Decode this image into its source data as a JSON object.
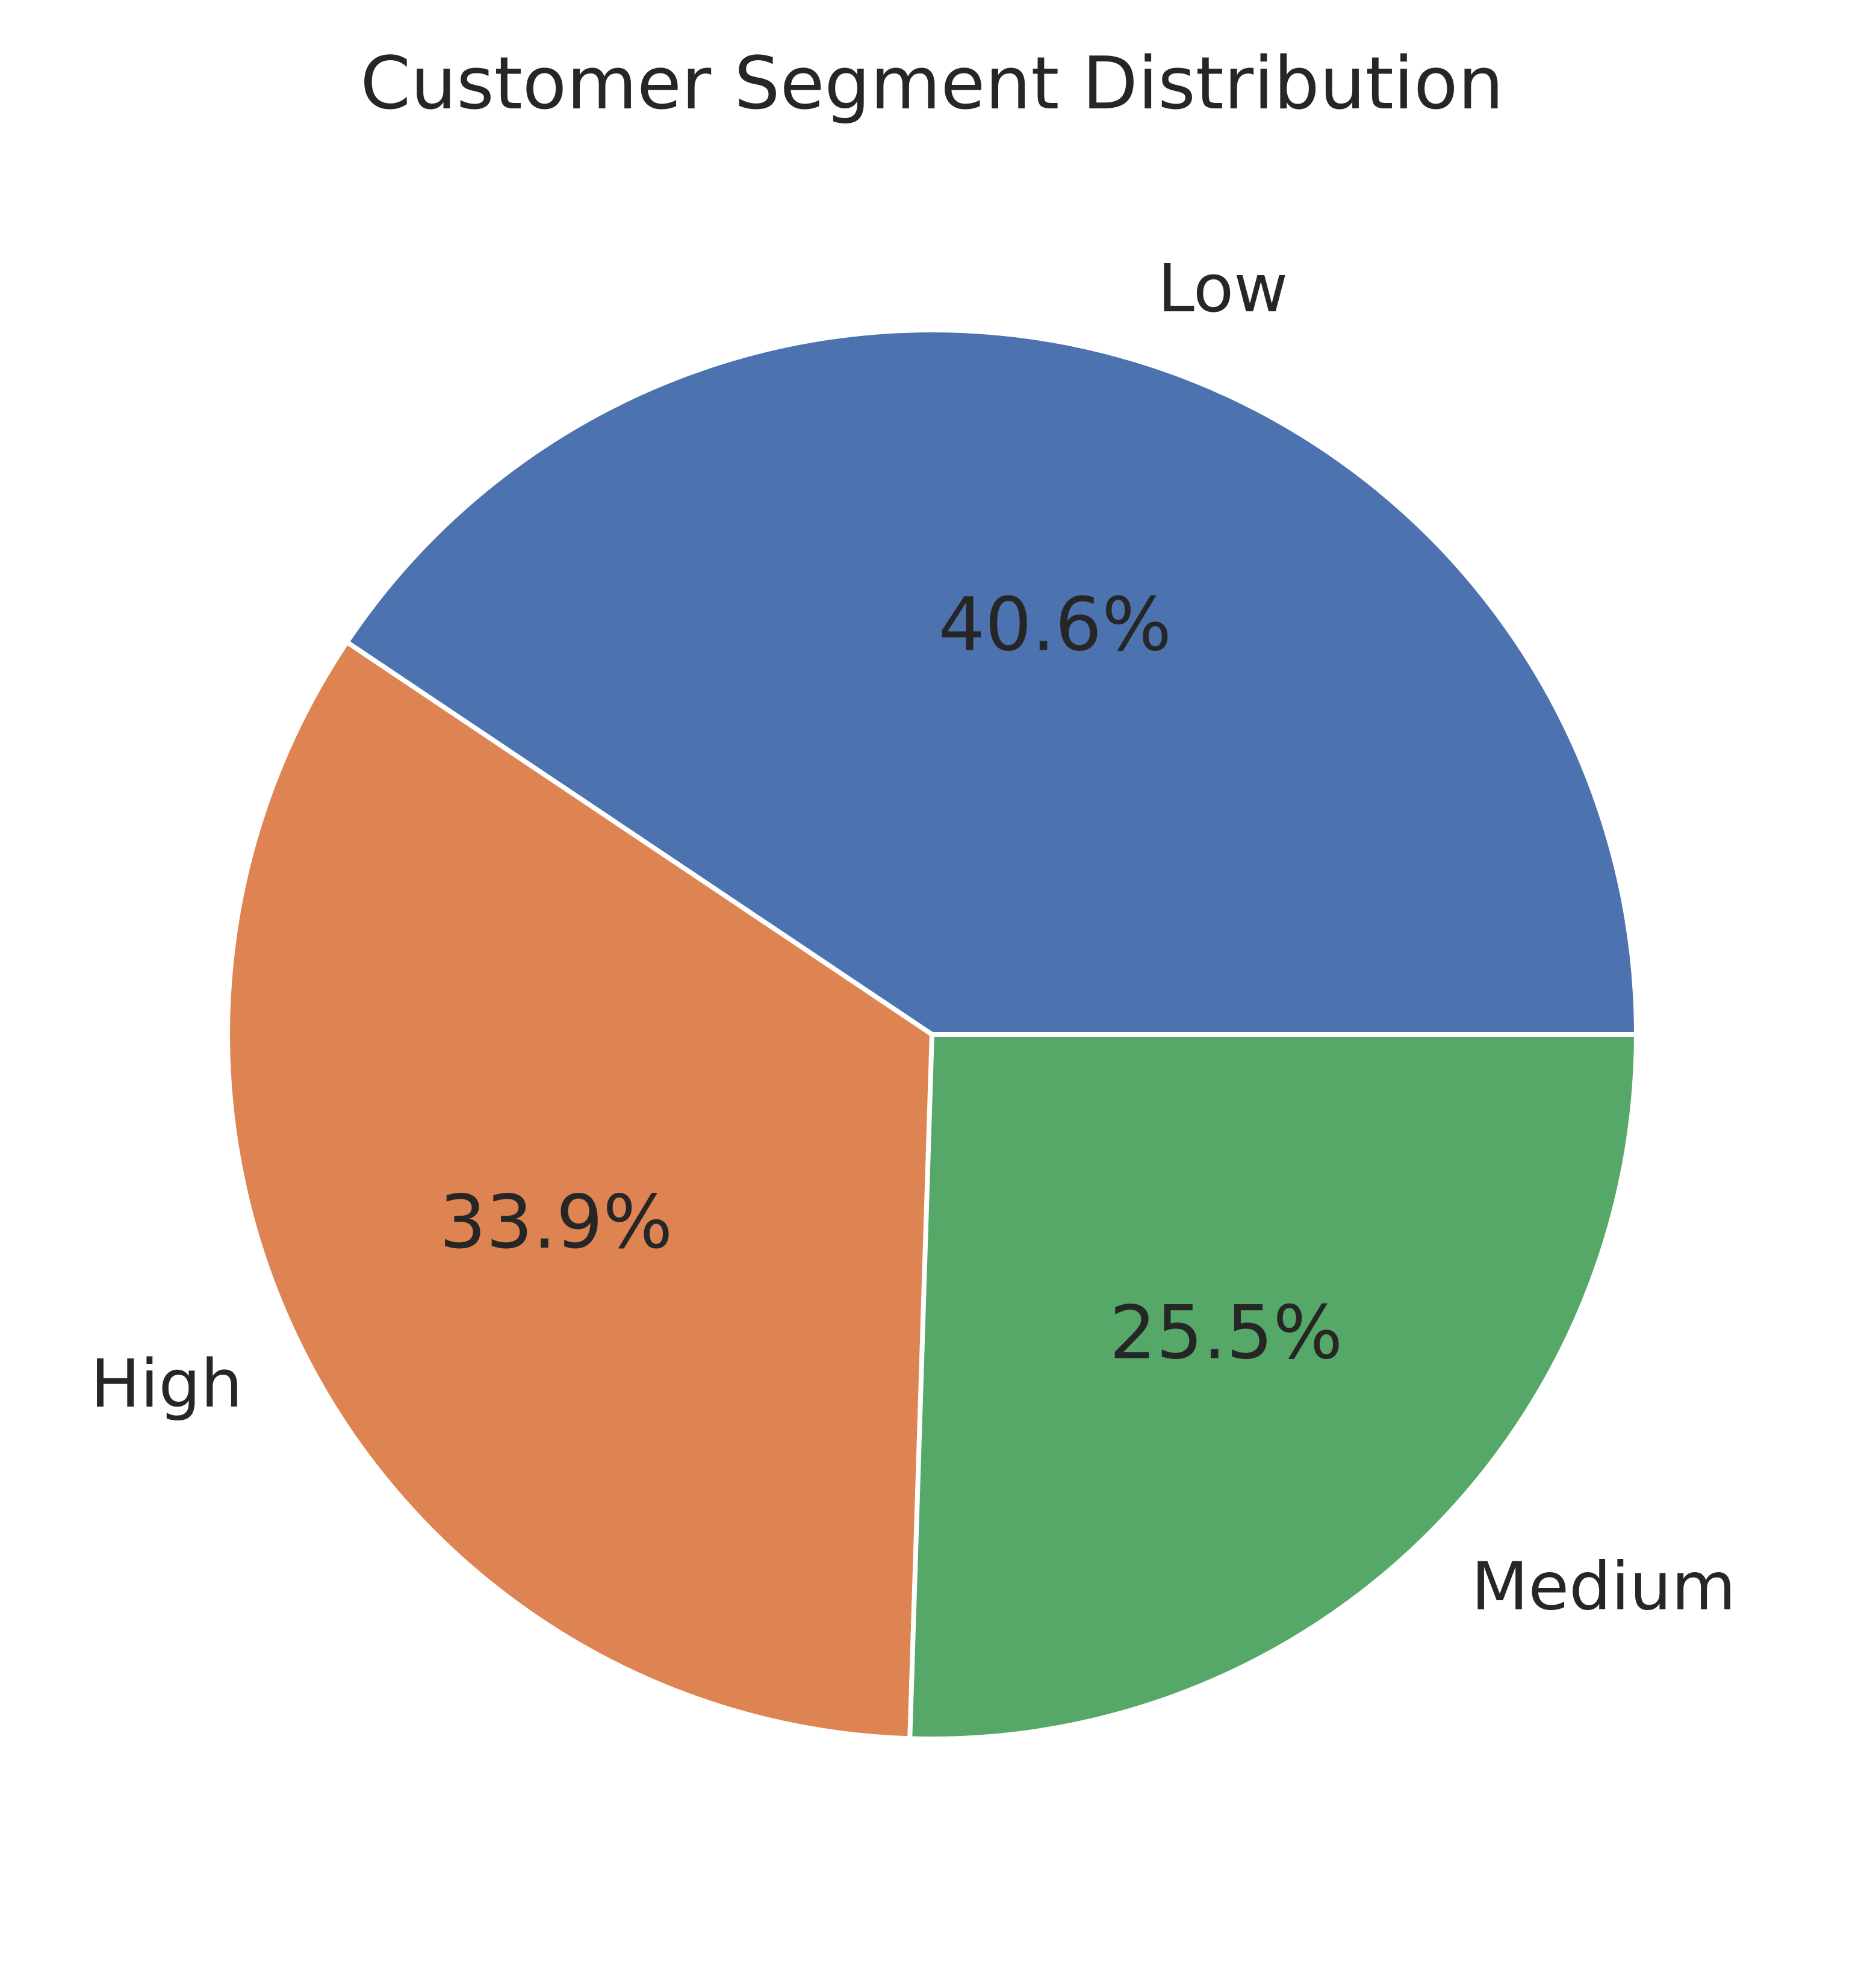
{
  "chart_data": {
    "type": "pie",
    "title": "Customer Segment Distribution",
    "slices": [
      {
        "name": "Low",
        "percent": 40.6,
        "label": "40.6%",
        "color": "#4c72b0"
      },
      {
        "name": "High",
        "percent": 33.9,
        "label": "33.9%",
        "color": "#dd8452"
      },
      {
        "name": "Medium",
        "percent": 25.5,
        "label": "25.5%",
        "color": "#55a868"
      }
    ],
    "start_angle_deg": 0,
    "direction": "counterclockwise",
    "legend": "none"
  }
}
